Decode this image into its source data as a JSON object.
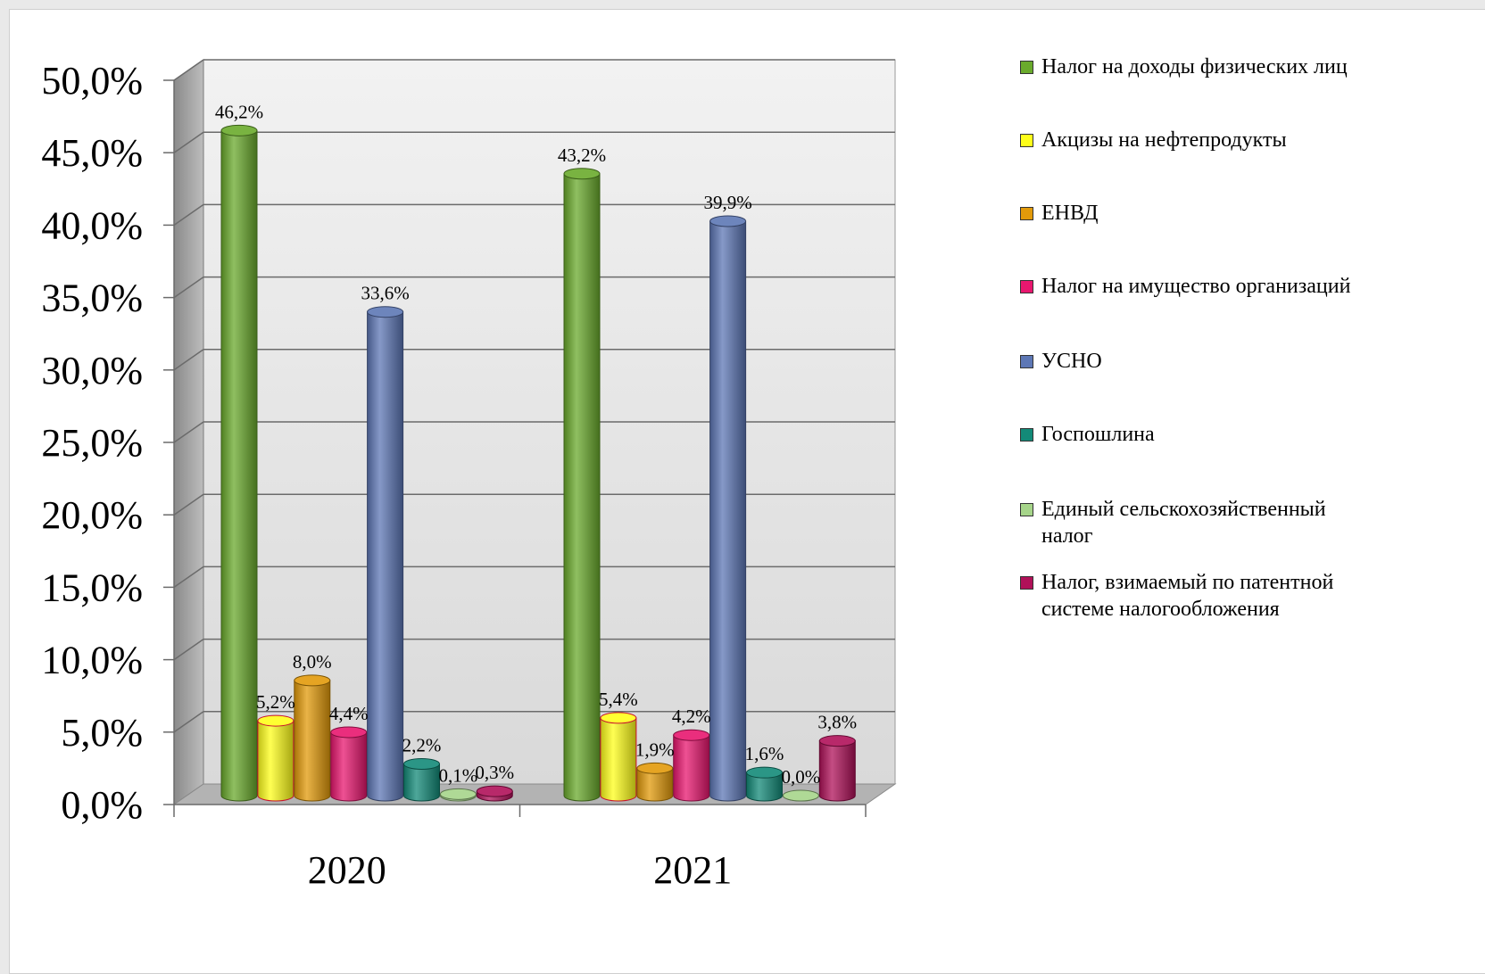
{
  "chart_data": {
    "type": "bar",
    "categories": [
      "2020",
      "2021"
    ],
    "ylim": [
      0,
      50
    ],
    "y_ticks": [
      "0,0%",
      "5,0%",
      "10,0%",
      "15,0%",
      "20,0%",
      "25,0%",
      "30,0%",
      "35,0%",
      "40,0%",
      "45,0%",
      "50,0%"
    ],
    "grid": true,
    "legend_position": "right",
    "series": [
      {
        "name": "Налог на доходы физических лиц",
        "color": "#6aaa2c",
        "values": [
          46.2,
          43.2
        ],
        "labels": [
          "46,2%",
          "43,2%"
        ]
      },
      {
        "name": "Акцизы на нефтепродукты",
        "color": "#ffff1a",
        "values": [
          5.2,
          5.4
        ],
        "labels": [
          "5,2%",
          "5,4%"
        ]
      },
      {
        "name": "ЕНВД",
        "color": "#e29a0a",
        "values": [
          8.0,
          1.9
        ],
        "labels": [
          "8,0%",
          "1,9%"
        ]
      },
      {
        "name": "Налог на имущество организаций",
        "color": "#e8176f",
        "values": [
          4.4,
          4.2
        ],
        "labels": [
          "4,4%",
          "4,2%"
        ]
      },
      {
        "name": "УСНО",
        "color": "#5d77b5",
        "values": [
          33.6,
          39.9
        ],
        "labels": [
          "33,6%",
          "39,9%"
        ]
      },
      {
        "name": "Госпошлина",
        "color": "#138a78",
        "values": [
          2.2,
          1.6
        ],
        "labels": [
          "2,2%",
          "1,6%"
        ]
      },
      {
        "name": "Единый сельскохозяйственный налог",
        "color": "#a6d58a",
        "values": [
          0.1,
          0.0
        ],
        "labels": [
          "0,1%",
          "0,0%"
        ]
      },
      {
        "name": "Налог, взимаемый по патентной системе налогообложения",
        "color": "#b01159",
        "values": [
          0.3,
          3.8
        ],
        "labels": [
          "0,3%",
          "3,8%"
        ]
      }
    ]
  },
  "legend": {
    "items": [
      {
        "lines": [
          "Налог на доходы физических лиц"
        ],
        "color": "#6aaa2c"
      },
      {
        "lines": [
          "Акцизы на нефтепродукты"
        ],
        "color": "#ffff1a"
      },
      {
        "lines": [
          "ЕНВД"
        ],
        "color": "#e29a0a"
      },
      {
        "lines": [
          "Налог на имущество организаций"
        ],
        "color": "#e8176f"
      },
      {
        "lines": [
          "УСНО"
        ],
        "color": "#5d77b5"
      },
      {
        "lines": [
          "Госпошлина"
        ],
        "color": "#138a78"
      },
      {
        "lines": [
          "Единый сельскохозяйственный",
          "налог"
        ],
        "color": "#a6d58a"
      },
      {
        "lines": [
          "Налог, взимаемый по патентной",
          "системе налогообложения"
        ],
        "color": "#b01159"
      }
    ]
  }
}
